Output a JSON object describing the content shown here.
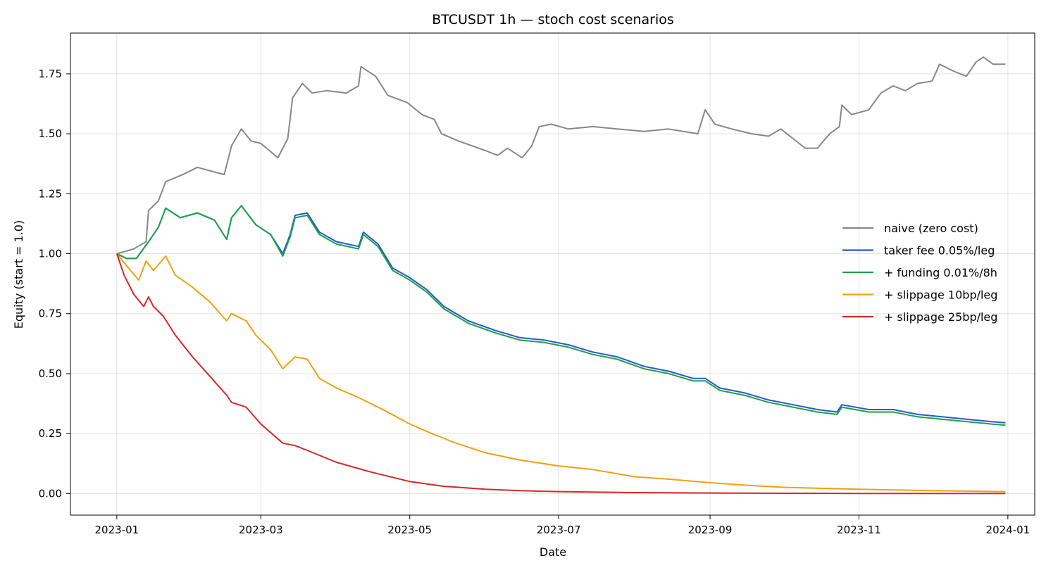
{
  "chart_data": {
    "type": "line",
    "title": "BTCUSDT 1h — stoch cost scenarios",
    "xlabel": "Date",
    "ylabel": "Equity (start = 1.0)",
    "x_range": [
      "2022-12-13",
      "2024-01-12"
    ],
    "y_range": [
      -0.09,
      1.92
    ],
    "x_ticks": [
      "2023-01",
      "2023-03",
      "2023-05",
      "2023-07",
      "2023-09",
      "2023-11",
      "2024-01"
    ],
    "y_ticks": [
      "0.00",
      "0.25",
      "0.50",
      "0.75",
      "1.00",
      "1.25",
      "1.50",
      "1.75"
    ],
    "grid": true,
    "legend_position": "center-right",
    "series": [
      {
        "name": "naive (zero cost)",
        "color": "#888888",
        "points": [
          [
            "2023-01-01",
            1.0
          ],
          [
            "2023-01-08",
            1.02
          ],
          [
            "2023-01-13",
            1.05
          ],
          [
            "2023-01-14",
            1.18
          ],
          [
            "2023-01-18",
            1.22
          ],
          [
            "2023-01-21",
            1.3
          ],
          [
            "2023-01-28",
            1.33
          ],
          [
            "2023-02-03",
            1.36
          ],
          [
            "2023-02-14",
            1.33
          ],
          [
            "2023-02-17",
            1.45
          ],
          [
            "2023-02-21",
            1.52
          ],
          [
            "2023-02-25",
            1.47
          ],
          [
            "2023-03-01",
            1.46
          ],
          [
            "2023-03-08",
            1.4
          ],
          [
            "2023-03-12",
            1.48
          ],
          [
            "2023-03-14",
            1.65
          ],
          [
            "2023-03-18",
            1.71
          ],
          [
            "2023-03-22",
            1.67
          ],
          [
            "2023-03-28",
            1.68
          ],
          [
            "2023-04-05",
            1.67
          ],
          [
            "2023-04-10",
            1.7
          ],
          [
            "2023-04-11",
            1.78
          ],
          [
            "2023-04-17",
            1.74
          ],
          [
            "2023-04-22",
            1.66
          ],
          [
            "2023-04-30",
            1.63
          ],
          [
            "2023-05-06",
            1.58
          ],
          [
            "2023-05-11",
            1.56
          ],
          [
            "2023-05-14",
            1.5
          ],
          [
            "2023-05-21",
            1.47
          ],
          [
            "2023-06-01",
            1.43
          ],
          [
            "2023-06-06",
            1.41
          ],
          [
            "2023-06-10",
            1.44
          ],
          [
            "2023-06-16",
            1.4
          ],
          [
            "2023-06-20",
            1.45
          ],
          [
            "2023-06-23",
            1.53
          ],
          [
            "2023-06-28",
            1.54
          ],
          [
            "2023-07-05",
            1.52
          ],
          [
            "2023-07-15",
            1.53
          ],
          [
            "2023-07-25",
            1.52
          ],
          [
            "2023-08-05",
            1.51
          ],
          [
            "2023-08-15",
            1.52
          ],
          [
            "2023-08-27",
            1.5
          ],
          [
            "2023-08-30",
            1.6
          ],
          [
            "2023-09-03",
            1.54
          ],
          [
            "2023-09-10",
            1.52
          ],
          [
            "2023-09-18",
            1.5
          ],
          [
            "2023-09-25",
            1.49
          ],
          [
            "2023-09-30",
            1.52
          ],
          [
            "2023-10-05",
            1.48
          ],
          [
            "2023-10-10",
            1.44
          ],
          [
            "2023-10-15",
            1.44
          ],
          [
            "2023-10-20",
            1.5
          ],
          [
            "2023-10-24",
            1.53
          ],
          [
            "2023-10-25",
            1.62
          ],
          [
            "2023-10-29",
            1.58
          ],
          [
            "2023-11-05",
            1.6
          ],
          [
            "2023-11-10",
            1.67
          ],
          [
            "2023-11-15",
            1.7
          ],
          [
            "2023-11-20",
            1.68
          ],
          [
            "2023-11-25",
            1.71
          ],
          [
            "2023-12-01",
            1.72
          ],
          [
            "2023-12-04",
            1.79
          ],
          [
            "2023-12-10",
            1.76
          ],
          [
            "2023-12-15",
            1.74
          ],
          [
            "2023-12-19",
            1.8
          ],
          [
            "2023-12-22",
            1.82
          ],
          [
            "2023-12-26",
            1.79
          ],
          [
            "2023-12-31",
            1.79
          ]
        ]
      },
      {
        "name": "taker fee 0.05%/leg",
        "color": "#2458d8",
        "points": [
          [
            "2023-01-01",
            1.0
          ],
          [
            "2023-01-05",
            0.98
          ],
          [
            "2023-01-09",
            0.98
          ],
          [
            "2023-01-14",
            1.05
          ],
          [
            "2023-01-18",
            1.11
          ],
          [
            "2023-01-21",
            1.19
          ],
          [
            "2023-01-27",
            1.15
          ],
          [
            "2023-02-03",
            1.17
          ],
          [
            "2023-02-10",
            1.14
          ],
          [
            "2023-02-15",
            1.06
          ],
          [
            "2023-02-17",
            1.15
          ],
          [
            "2023-02-21",
            1.2
          ],
          [
            "2023-02-27",
            1.12
          ],
          [
            "2023-03-05",
            1.08
          ],
          [
            "2023-03-10",
            1.0
          ],
          [
            "2023-03-13",
            1.08
          ],
          [
            "2023-03-15",
            1.16
          ],
          [
            "2023-03-20",
            1.17
          ],
          [
            "2023-03-25",
            1.09
          ],
          [
            "2023-04-01",
            1.05
          ],
          [
            "2023-04-10",
            1.03
          ],
          [
            "2023-04-12",
            1.09
          ],
          [
            "2023-04-18",
            1.04
          ],
          [
            "2023-04-24",
            0.94
          ],
          [
            "2023-05-01",
            0.9
          ],
          [
            "2023-05-08",
            0.85
          ],
          [
            "2023-05-15",
            0.78
          ],
          [
            "2023-05-25",
            0.72
          ],
          [
            "2023-06-05",
            0.68
          ],
          [
            "2023-06-15",
            0.65
          ],
          [
            "2023-06-25",
            0.64
          ],
          [
            "2023-07-05",
            0.62
          ],
          [
            "2023-07-15",
            0.59
          ],
          [
            "2023-07-25",
            0.57
          ],
          [
            "2023-08-05",
            0.53
          ],
          [
            "2023-08-15",
            0.51
          ],
          [
            "2023-08-25",
            0.48
          ],
          [
            "2023-08-30",
            0.48
          ],
          [
            "2023-09-05",
            0.44
          ],
          [
            "2023-09-15",
            0.42
          ],
          [
            "2023-09-25",
            0.39
          ],
          [
            "2023-10-05",
            0.37
          ],
          [
            "2023-10-15",
            0.35
          ],
          [
            "2023-10-23",
            0.34
          ],
          [
            "2023-10-25",
            0.37
          ],
          [
            "2023-11-05",
            0.35
          ],
          [
            "2023-11-15",
            0.35
          ],
          [
            "2023-11-25",
            0.33
          ],
          [
            "2023-12-05",
            0.32
          ],
          [
            "2023-12-15",
            0.31
          ],
          [
            "2023-12-25",
            0.3
          ],
          [
            "2023-12-31",
            0.295
          ]
        ]
      },
      {
        "name": "+ funding 0.01%/8h",
        "color": "#1ea045",
        "points": [
          [
            "2023-01-01",
            1.0
          ],
          [
            "2023-01-05",
            0.98
          ],
          [
            "2023-01-09",
            0.98
          ],
          [
            "2023-01-14",
            1.05
          ],
          [
            "2023-01-18",
            1.11
          ],
          [
            "2023-01-21",
            1.19
          ],
          [
            "2023-01-27",
            1.15
          ],
          [
            "2023-02-03",
            1.17
          ],
          [
            "2023-02-10",
            1.14
          ],
          [
            "2023-02-15",
            1.06
          ],
          [
            "2023-02-17",
            1.15
          ],
          [
            "2023-02-21",
            1.2
          ],
          [
            "2023-02-27",
            1.12
          ],
          [
            "2023-03-05",
            1.08
          ],
          [
            "2023-03-10",
            0.99
          ],
          [
            "2023-03-13",
            1.07
          ],
          [
            "2023-03-15",
            1.15
          ],
          [
            "2023-03-20",
            1.16
          ],
          [
            "2023-03-25",
            1.08
          ],
          [
            "2023-04-01",
            1.04
          ],
          [
            "2023-04-10",
            1.02
          ],
          [
            "2023-04-12",
            1.08
          ],
          [
            "2023-04-18",
            1.03
          ],
          [
            "2023-04-24",
            0.93
          ],
          [
            "2023-05-01",
            0.89
          ],
          [
            "2023-05-08",
            0.84
          ],
          [
            "2023-05-15",
            0.77
          ],
          [
            "2023-05-25",
            0.71
          ],
          [
            "2023-06-05",
            0.67
          ],
          [
            "2023-06-15",
            0.64
          ],
          [
            "2023-06-25",
            0.63
          ],
          [
            "2023-07-05",
            0.61
          ],
          [
            "2023-07-15",
            0.58
          ],
          [
            "2023-07-25",
            0.56
          ],
          [
            "2023-08-05",
            0.52
          ],
          [
            "2023-08-15",
            0.5
          ],
          [
            "2023-08-25",
            0.47
          ],
          [
            "2023-08-30",
            0.47
          ],
          [
            "2023-09-05",
            0.43
          ],
          [
            "2023-09-15",
            0.41
          ],
          [
            "2023-09-25",
            0.38
          ],
          [
            "2023-10-05",
            0.36
          ],
          [
            "2023-10-15",
            0.34
          ],
          [
            "2023-10-23",
            0.33
          ],
          [
            "2023-10-25",
            0.36
          ],
          [
            "2023-11-05",
            0.34
          ],
          [
            "2023-11-15",
            0.34
          ],
          [
            "2023-11-25",
            0.32
          ],
          [
            "2023-12-05",
            0.31
          ],
          [
            "2023-12-15",
            0.3
          ],
          [
            "2023-12-25",
            0.29
          ],
          [
            "2023-12-31",
            0.285
          ]
        ]
      },
      {
        "name": "+ slippage 10bp/leg",
        "color": "#f0a010",
        "points": [
          [
            "2023-01-01",
            1.0
          ],
          [
            "2023-01-05",
            0.95
          ],
          [
            "2023-01-10",
            0.89
          ],
          [
            "2023-01-13",
            0.97
          ],
          [
            "2023-01-16",
            0.93
          ],
          [
            "2023-01-21",
            0.99
          ],
          [
            "2023-01-25",
            0.91
          ],
          [
            "2023-02-01",
            0.86
          ],
          [
            "2023-02-08",
            0.8
          ],
          [
            "2023-02-15",
            0.72
          ],
          [
            "2023-02-17",
            0.75
          ],
          [
            "2023-02-23",
            0.72
          ],
          [
            "2023-02-27",
            0.66
          ],
          [
            "2023-03-05",
            0.6
          ],
          [
            "2023-03-10",
            0.52
          ],
          [
            "2023-03-15",
            0.57
          ],
          [
            "2023-03-20",
            0.56
          ],
          [
            "2023-03-25",
            0.48
          ],
          [
            "2023-04-01",
            0.44
          ],
          [
            "2023-04-10",
            0.4
          ],
          [
            "2023-04-20",
            0.35
          ],
          [
            "2023-05-01",
            0.29
          ],
          [
            "2023-05-10",
            0.25
          ],
          [
            "2023-05-20",
            0.21
          ],
          [
            "2023-06-01",
            0.17
          ],
          [
            "2023-06-15",
            0.14
          ],
          [
            "2023-07-01",
            0.115
          ],
          [
            "2023-07-15",
            0.1
          ],
          [
            "2023-08-01",
            0.07
          ],
          [
            "2023-08-15",
            0.06
          ],
          [
            "2023-09-01",
            0.045
          ],
          [
            "2023-09-15",
            0.035
          ],
          [
            "2023-10-01",
            0.026
          ],
          [
            "2023-10-15",
            0.022
          ],
          [
            "2023-11-01",
            0.018
          ],
          [
            "2023-11-15",
            0.015
          ],
          [
            "2023-12-01",
            0.012
          ],
          [
            "2023-12-15",
            0.01
          ],
          [
            "2023-12-31",
            0.008
          ]
        ]
      },
      {
        "name": "+ slippage 25bp/leg",
        "color": "#d62828",
        "points": [
          [
            "2023-01-01",
            1.0
          ],
          [
            "2023-01-04",
            0.91
          ],
          [
            "2023-01-08",
            0.83
          ],
          [
            "2023-01-12",
            0.78
          ],
          [
            "2023-01-14",
            0.82
          ],
          [
            "2023-01-16",
            0.78
          ],
          [
            "2023-01-20",
            0.74
          ],
          [
            "2023-01-25",
            0.66
          ],
          [
            "2023-02-01",
            0.57
          ],
          [
            "2023-02-08",
            0.49
          ],
          [
            "2023-02-15",
            0.41
          ],
          [
            "2023-02-17",
            0.38
          ],
          [
            "2023-02-23",
            0.36
          ],
          [
            "2023-03-01",
            0.29
          ],
          [
            "2023-03-10",
            0.21
          ],
          [
            "2023-03-15",
            0.2
          ],
          [
            "2023-03-20",
            0.18
          ],
          [
            "2023-04-01",
            0.13
          ],
          [
            "2023-04-15",
            0.09
          ],
          [
            "2023-05-01",
            0.05
          ],
          [
            "2023-05-15",
            0.03
          ],
          [
            "2023-06-01",
            0.018
          ],
          [
            "2023-06-15",
            0.012
          ],
          [
            "2023-07-01",
            0.008
          ],
          [
            "2023-08-01",
            0.004
          ],
          [
            "2023-09-01",
            0.002
          ],
          [
            "2023-10-01",
            0.001
          ],
          [
            "2023-11-01",
            0.0005
          ],
          [
            "2023-12-31",
            0.0002
          ]
        ]
      }
    ]
  }
}
